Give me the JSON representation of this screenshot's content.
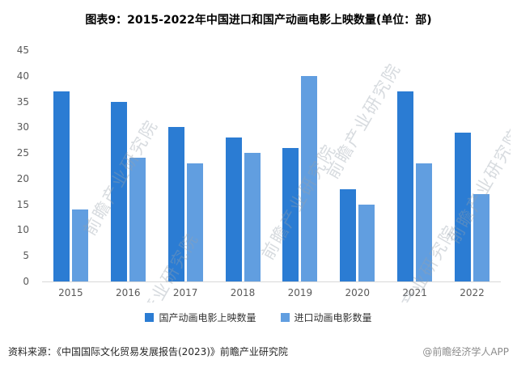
{
  "title": "图表9：2015-2022年中国进口和国产动画电影上映数量(单位：部)",
  "chart_data": {
    "type": "bar",
    "categories": [
      "2015",
      "2016",
      "2017",
      "2018",
      "2019",
      "2020",
      "2021",
      "2022"
    ],
    "series": [
      {
        "name": "国产动画电影上映数量",
        "color": "#2b7cd3",
        "values": [
          37,
          35,
          30,
          28,
          26,
          18,
          37,
          29
        ]
      },
      {
        "name": "进口动画电影数量",
        "color": "#619ee0",
        "values": [
          14,
          24,
          23,
          25,
          40,
          15,
          23,
          17
        ]
      }
    ],
    "ylim": [
      0,
      45
    ],
    "yticks": [
      0,
      5,
      10,
      15,
      20,
      25,
      30,
      35,
      40,
      45
    ],
    "grid": false,
    "legend_position": "bottom"
  },
  "watermark": "前瞻产业研究院",
  "footer": {
    "source": "资料来源：《中国国际文化贸易发展报告(2023)》前瞻产业研究院",
    "credit": "@前瞻经济学人APP"
  }
}
